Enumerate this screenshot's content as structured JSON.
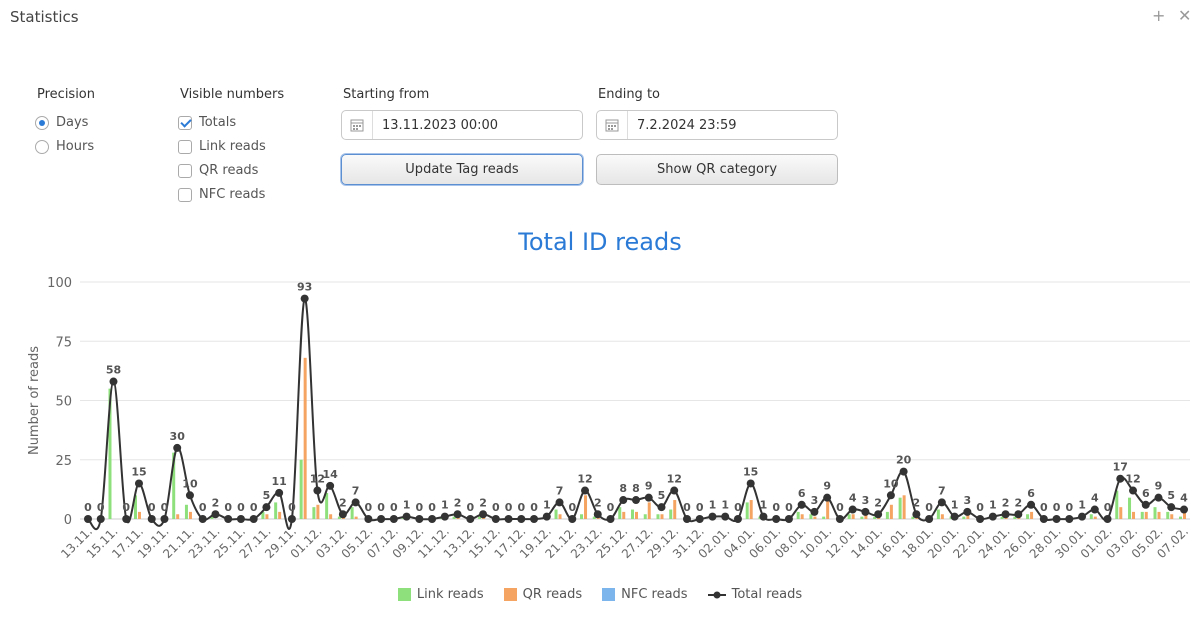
{
  "window": {
    "title": "Statistics",
    "buttons": [
      "+",
      "✕"
    ]
  },
  "precision": {
    "label": "Precision",
    "options": [
      {
        "label": "Days",
        "selected": true
      },
      {
        "label": "Hours",
        "selected": false
      }
    ]
  },
  "visible_numbers": {
    "label": "Visible numbers",
    "options": [
      {
        "label": "Totals",
        "checked": true
      },
      {
        "label": "Link reads",
        "checked": false
      },
      {
        "label": "QR reads",
        "checked": false
      },
      {
        "label": "NFC reads",
        "checked": false
      }
    ]
  },
  "start": {
    "label": "Starting from",
    "value": "13.11.2023 00:00"
  },
  "end": {
    "label": "Ending to",
    "value": "7.2.2024 23:59"
  },
  "buttons": {
    "update": "Update Tag reads",
    "qr": "Show QR category"
  },
  "colors": {
    "link": "#8ee07c",
    "qr": "#f5a462",
    "nfc": "#7cb5ec",
    "total": "#333333",
    "accent": "#2b7bd6"
  },
  "chart_data": {
    "type": "bar+line",
    "title": "Total ID reads",
    "ylabel": "Number of reads",
    "xlabel": "",
    "ylim": [
      0,
      100
    ],
    "yticks": [
      0,
      25,
      50,
      75,
      100
    ],
    "grid": true,
    "legend_position": "bottom",
    "legend": [
      "Link reads",
      "QR reads",
      "NFC reads",
      "Total reads"
    ],
    "x_tick_labels": [
      "13.11.",
      "15.11.",
      "17.11.",
      "19.11.",
      "21.11.",
      "23.11.",
      "25.11.",
      "27.11.",
      "29.11.",
      "01.12.",
      "03.12.",
      "05.12.",
      "07.12.",
      "09.12.",
      "11.12.",
      "13.12.",
      "15.12.",
      "17.12.",
      "19.12.",
      "21.12.",
      "23.12.",
      "25.12.",
      "27.12.",
      "29.12.",
      "31.12.",
      "02.01.",
      "04.01.",
      "06.01.",
      "08.01.",
      "10.01.",
      "12.01.",
      "14.01.",
      "16.01.",
      "18.01.",
      "20.01.",
      "22.01.",
      "24.01.",
      "26.01.",
      "28.01.",
      "30.01.",
      "01.02.",
      "03.02.",
      "05.02.",
      "07.02."
    ],
    "total": [
      0,
      0,
      58,
      0,
      15,
      0,
      0,
      30,
      10,
      0,
      2,
      0,
      0,
      0,
      5,
      11,
      0,
      93,
      12,
      14,
      2,
      7,
      0,
      0,
      0,
      1,
      0,
      0,
      1,
      2,
      0,
      2,
      0,
      0,
      0,
      0,
      1,
      7,
      0,
      12,
      2,
      0,
      8,
      8,
      9,
      5,
      12,
      0,
      0,
      1,
      1,
      0,
      15,
      1,
      0,
      0,
      6,
      3,
      9,
      0,
      4,
      3,
      2,
      10,
      20,
      2,
      0,
      7,
      1,
      3,
      0,
      1,
      2,
      2,
      6,
      0,
      0,
      0,
      1,
      4,
      0,
      17,
      12,
      6,
      9,
      5,
      4
    ],
    "link": [
      0,
      0,
      55,
      0,
      10,
      0,
      0,
      28,
      6,
      0,
      1,
      0,
      0,
      0,
      3,
      7,
      0,
      25,
      5,
      11,
      1,
      5,
      0,
      0,
      0,
      1,
      0,
      0,
      1,
      1,
      0,
      1,
      0,
      0,
      0,
      0,
      0,
      4,
      0,
      2,
      1,
      0,
      5,
      4,
      2,
      2,
      4,
      0,
      0,
      0,
      0,
      0,
      7,
      1,
      0,
      0,
      3,
      2,
      1,
      0,
      2,
      1,
      1,
      3,
      9,
      1,
      0,
      4,
      1,
      1,
      0,
      0,
      1,
      1,
      2,
      0,
      0,
      0,
      0,
      2,
      0,
      12,
      9,
      3,
      5,
      3,
      1
    ],
    "qr": [
      0,
      0,
      0,
      0,
      3,
      0,
      0,
      2,
      3,
      0,
      0,
      0,
      0,
      0,
      2,
      3,
      0,
      68,
      6,
      2,
      1,
      1,
      0,
      0,
      0,
      0,
      0,
      0,
      0,
      1,
      0,
      1,
      0,
      0,
      0,
      0,
      1,
      2,
      0,
      10,
      1,
      0,
      3,
      3,
      7,
      2,
      8,
      0,
      0,
      1,
      1,
      0,
      8,
      0,
      0,
      0,
      2,
      1,
      8,
      0,
      2,
      2,
      1,
      6,
      10,
      1,
      0,
      2,
      0,
      2,
      0,
      1,
      1,
      1,
      3,
      0,
      0,
      0,
      1,
      1,
      0,
      5,
      3,
      3,
      3,
      2,
      3
    ],
    "nfc": [
      0,
      0,
      0,
      0,
      0,
      0,
      0,
      0,
      0,
      0,
      0,
      0,
      0,
      0,
      0,
      0,
      0,
      0,
      0,
      0,
      0,
      0,
      0,
      0,
      0,
      0,
      0,
      0,
      0,
      0,
      0,
      0,
      0,
      0,
      0,
      0,
      0,
      0,
      0,
      0,
      0,
      0,
      0,
      0,
      0,
      0,
      0,
      0,
      0,
      0,
      0,
      0,
      0,
      0,
      0,
      0,
      0,
      0,
      0,
      0,
      0,
      0,
      0,
      0,
      0,
      0,
      0,
      0,
      0,
      0,
      0,
      0,
      0,
      0,
      0,
      0,
      0,
      0,
      0,
      0,
      0,
      0,
      0,
      0,
      0,
      0,
      0
    ]
  }
}
